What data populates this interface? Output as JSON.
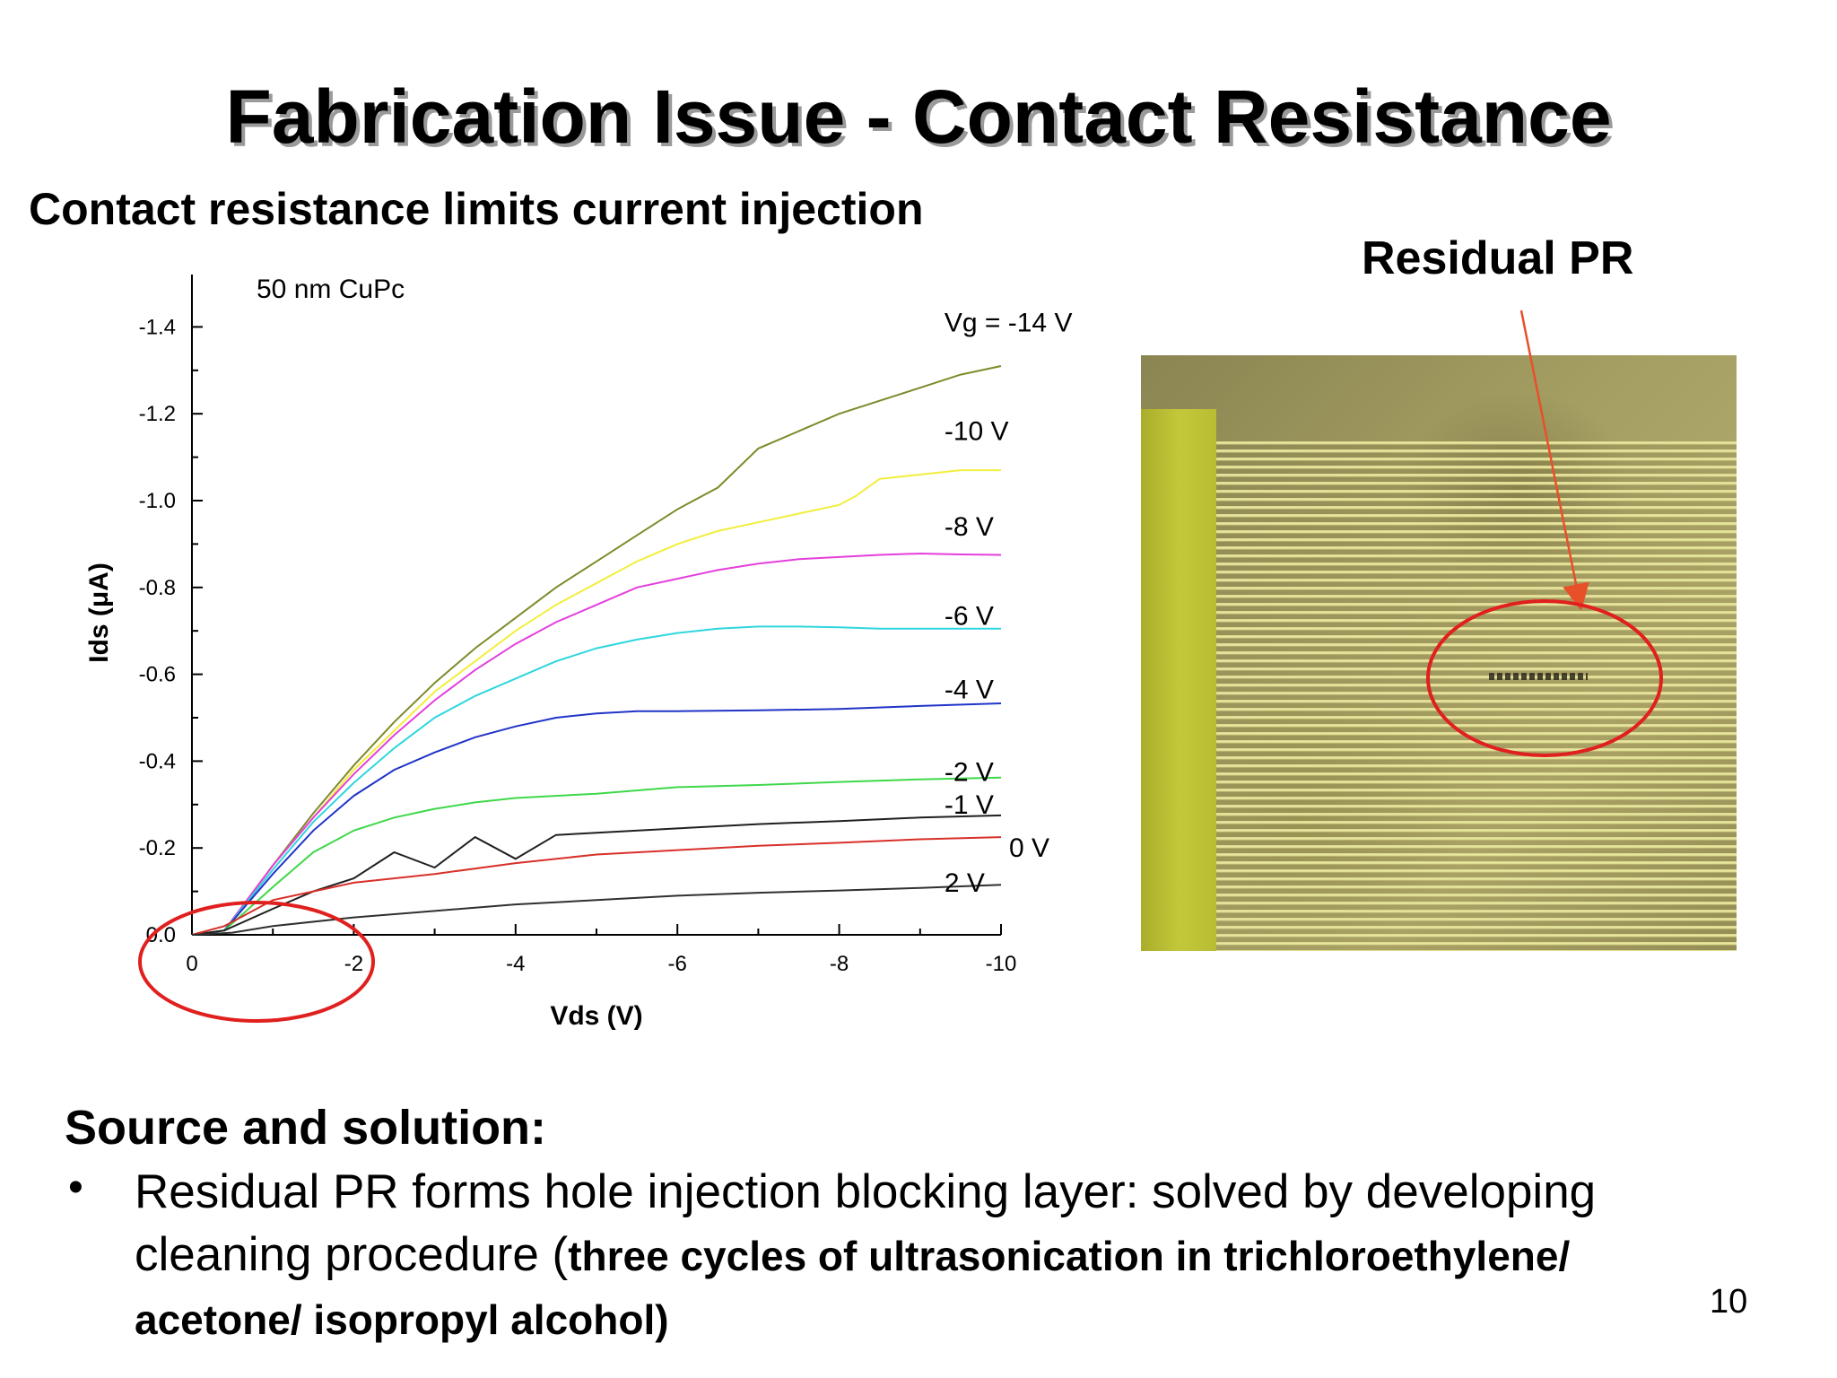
{
  "slide": {
    "title": "Fabrication Issue - Contact Resistance",
    "subtitle": "Contact resistance limits current injection",
    "photo_label": "Residual PR",
    "section_heading": "Source and solution:",
    "bullet_marker": "•",
    "bullet_text": "Residual PR forms hole injection blocking layer: solved by developing cleaning procedure (",
    "bullet_bold": "three cycles of ultrasonication in trichloroethylene/ acetone/ isopropyl alcohol)",
    "page_number": "10"
  },
  "colors": {
    "annotation_red": "#e0201e",
    "arrow": "#e8502a"
  },
  "chart_data": {
    "type": "line",
    "annotation": "50 nm CuPc",
    "xlabel": "Vds (V)",
    "ylabel": "Ids (μA)",
    "xlim": [
      0,
      -10
    ],
    "ylim": [
      0.0,
      -1.5
    ],
    "xticks": [
      "0",
      "-2",
      "-4",
      "-6",
      "-8",
      "-10"
    ],
    "yticks": [
      "0.0",
      "-0.2",
      "-0.4",
      "-0.6",
      "-0.8",
      "-1.0",
      "-1.2",
      "-1.4"
    ],
    "series": [
      {
        "name": "Vg = -14 V",
        "color": "#7f8a2a",
        "x": [
          0,
          -0.4,
          -1,
          -1.5,
          -2,
          -2.5,
          -3,
          -3.5,
          -4,
          -4.5,
          -5,
          -5.5,
          -6,
          -6.5,
          -7,
          -7.5,
          -8,
          -8.5,
          -9,
          -9.5,
          -10
        ],
        "y": [
          0,
          -0.01,
          -0.16,
          -0.28,
          -0.39,
          -0.49,
          -0.58,
          -0.66,
          -0.73,
          -0.8,
          -0.86,
          -0.92,
          -0.98,
          -1.03,
          -1.12,
          -1.16,
          -1.2,
          -1.23,
          -1.26,
          -1.29,
          -1.31
        ]
      },
      {
        "name": "-10 V",
        "color": "#f2ee3c",
        "x": [
          0,
          -0.4,
          -1,
          -1.5,
          -2,
          -2.5,
          -3,
          -3.5,
          -4,
          -4.5,
          -5,
          -5.5,
          -6,
          -6.5,
          -7,
          -7.5,
          -8,
          -8.2,
          -8.5,
          -9,
          -9.5,
          -10
        ],
        "y": [
          0,
          -0.01,
          -0.16,
          -0.27,
          -0.38,
          -0.47,
          -0.56,
          -0.63,
          -0.7,
          -0.76,
          -0.81,
          -0.86,
          -0.9,
          -0.93,
          -0.95,
          -0.97,
          -0.99,
          -1.01,
          -1.05,
          -1.06,
          -1.07,
          -1.07
        ]
      },
      {
        "name": "-8 V",
        "color": "#e43fdc",
        "x": [
          0,
          -0.4,
          -1,
          -1.5,
          -2,
          -2.5,
          -3,
          -3.5,
          -4,
          -4.5,
          -5,
          -5.5,
          -6,
          -6.5,
          -7,
          -7.5,
          -8,
          -8.5,
          -9,
          -9.5,
          -10
        ],
        "y": [
          0,
          -0.01,
          -0.16,
          -0.27,
          -0.37,
          -0.46,
          -0.54,
          -0.61,
          -0.67,
          -0.72,
          -0.76,
          -0.8,
          -0.82,
          -0.84,
          -0.855,
          -0.865,
          -0.87,
          -0.875,
          -0.878,
          -0.876,
          -0.875
        ]
      },
      {
        "name": "-6 V",
        "color": "#2fd6de",
        "x": [
          0,
          -0.4,
          -1,
          -1.5,
          -2,
          -2.5,
          -3,
          -3.5,
          -4,
          -4.5,
          -5,
          -5.5,
          -6,
          -6.5,
          -7,
          -7.5,
          -8,
          -8.5,
          -9,
          -9.5,
          -10
        ],
        "y": [
          0,
          -0.01,
          -0.15,
          -0.26,
          -0.35,
          -0.43,
          -0.5,
          -0.55,
          -0.59,
          -0.63,
          -0.66,
          -0.68,
          -0.695,
          -0.705,
          -0.71,
          -0.71,
          -0.708,
          -0.705,
          -0.705,
          -0.705,
          -0.705
        ]
      },
      {
        "name": "-4 V",
        "color": "#2034c8",
        "x": [
          0,
          -0.4,
          -1,
          -1.5,
          -2,
          -2.5,
          -3,
          -3.5,
          -4,
          -4.5,
          -5,
          -5.5,
          -6,
          -7,
          -8,
          -9,
          -10
        ],
        "y": [
          0,
          -0.01,
          -0.14,
          -0.24,
          -0.32,
          -0.38,
          -0.42,
          -0.455,
          -0.48,
          -0.5,
          -0.51,
          -0.515,
          -0.515,
          -0.517,
          -0.52,
          -0.527,
          -0.533
        ]
      },
      {
        "name": "-2 V",
        "color": "#3fd84a",
        "x": [
          0,
          -0.4,
          -1,
          -1.5,
          -2,
          -2.5,
          -3,
          -3.5,
          -4,
          -5,
          -6,
          -7,
          -8,
          -9,
          -10
        ],
        "y": [
          0,
          -0.01,
          -0.11,
          -0.19,
          -0.24,
          -0.27,
          -0.29,
          -0.305,
          -0.315,
          -0.325,
          -0.34,
          -0.345,
          -0.352,
          -0.358,
          -0.362
        ]
      },
      {
        "name": "-1 V",
        "color": "#202020",
        "x": [
          0,
          -0.4,
          -1,
          -1.5,
          -2,
          -2.5,
          -3,
          -3.5,
          -4,
          -4.5,
          -5,
          -6,
          -7,
          -8,
          -9,
          -10
        ],
        "y": [
          0,
          -0.01,
          -0.06,
          -0.1,
          -0.13,
          -0.19,
          -0.155,
          -0.225,
          -0.175,
          -0.23,
          -0.235,
          -0.245,
          -0.255,
          -0.262,
          -0.27,
          -0.275
        ]
      },
      {
        "name": "0 V",
        "color": "#d8302a",
        "x": [
          0,
          -0.4,
          -1,
          -1.5,
          -2,
          -3,
          -4,
          -5,
          -6,
          -7,
          -8,
          -9,
          -10
        ],
        "y": [
          0,
          -0.02,
          -0.08,
          -0.1,
          -0.12,
          -0.14,
          -0.165,
          -0.185,
          -0.195,
          -0.205,
          -0.212,
          -0.22,
          -0.225
        ]
      },
      {
        "name": "2 V",
        "color": "#303030",
        "x": [
          0,
          -0.5,
          -1,
          -2,
          -3,
          -4,
          -5,
          -6,
          -7,
          -8,
          -9,
          -10
        ],
        "y": [
          0,
          -0.005,
          -0.02,
          -0.04,
          -0.055,
          -0.07,
          -0.08,
          -0.09,
          -0.097,
          -0.102,
          -0.108,
          -0.115
        ]
      }
    ]
  }
}
